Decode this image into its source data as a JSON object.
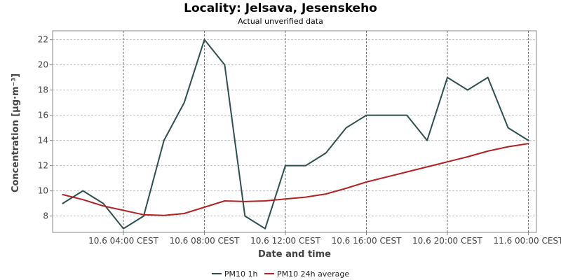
{
  "chart_data": {
    "type": "line",
    "title": "Locality: Jelsava, Jesenskeho",
    "subtitle": "Actual unverified data",
    "xlabel": "Date and time",
    "ylabel": "Concentration [µg·m⁻³]",
    "ylim": [
      6.7,
      22.7
    ],
    "yticks": [
      8,
      10,
      12,
      14,
      16,
      18,
      20,
      22
    ],
    "x_ticks": [
      {
        "hour": 4,
        "label": "10.6 04:00 CEST"
      },
      {
        "hour": 8,
        "label": "10.6 08:00 CEST"
      },
      {
        "hour": 12,
        "label": "10.6 12:00 CEST"
      },
      {
        "hour": 16,
        "label": "10.6 16:00 CEST"
      },
      {
        "hour": 20,
        "label": "10.6 20:00 CEST"
      },
      {
        "hour": 24,
        "label": "11.6 00:00 CEST"
      }
    ],
    "x_hours": [
      1,
      2,
      3,
      4,
      5,
      6,
      7,
      8,
      9,
      10,
      11,
      12,
      13,
      14,
      15,
      16,
      17,
      18,
      19,
      20,
      21,
      22,
      23,
      24
    ],
    "grid": true,
    "legend_position": "bottom",
    "series": [
      {
        "name": "PM10 1h",
        "color": "#2f4f4f",
        "values": [
          9,
          10,
          9,
          7,
          8,
          14,
          17,
          22,
          20,
          8,
          7,
          12,
          12,
          13,
          15,
          16,
          16,
          16,
          14,
          19,
          18,
          19,
          15,
          14
        ]
      },
      {
        "name": "PM10 24h average",
        "color": "#b22222",
        "values": [
          9.7,
          9.3,
          8.8,
          8.45,
          8.1,
          8.05,
          8.2,
          8.7,
          9.2,
          9.15,
          9.2,
          9.35,
          9.5,
          9.75,
          10.2,
          10.7,
          11.1,
          11.5,
          11.9,
          12.3,
          12.7,
          13.15,
          13.5,
          13.75
        ]
      }
    ]
  }
}
